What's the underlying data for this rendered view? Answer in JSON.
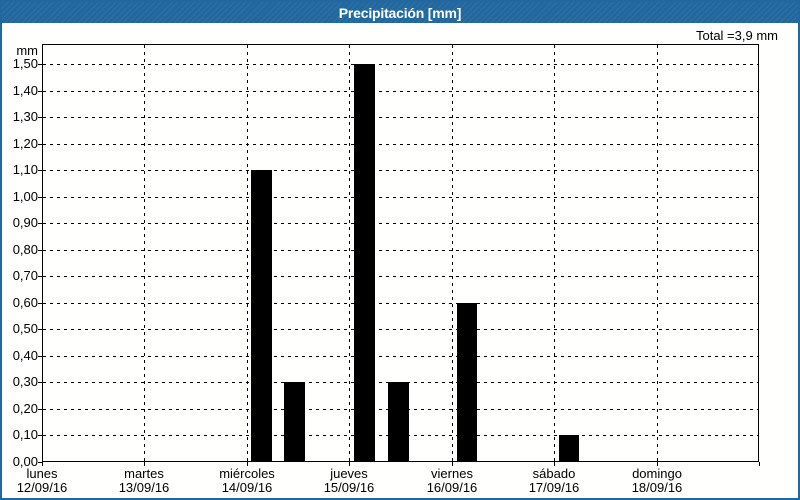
{
  "window": {
    "title": "Precipitación [mm]",
    "total_label": "Total =3,9 mm"
  },
  "colors": {
    "titlebar": "#20689e",
    "window_border": "#20689e",
    "title_text": "#ffffff",
    "bar": "#000000",
    "grid": "#000000",
    "text": "#000000",
    "background": "#fffffe"
  },
  "chart_data": {
    "type": "bar",
    "title": "Precipitación [mm]",
    "ylabel_unit": "mm",
    "total": 3.9,
    "total_text": "Total =3,9 mm",
    "ylim": [
      0,
      1.575
    ],
    "ytick_step": 0.1,
    "grid": "dashed",
    "legend": "none",
    "yticks": [
      {
        "value": 0.0,
        "label": "0,00"
      },
      {
        "value": 0.1,
        "label": "0,10"
      },
      {
        "value": 0.2,
        "label": "0,20"
      },
      {
        "value": 0.3,
        "label": "0,30"
      },
      {
        "value": 0.4,
        "label": "0,40"
      },
      {
        "value": 0.5,
        "label": "0,50"
      },
      {
        "value": 0.6,
        "label": "0,60"
      },
      {
        "value": 0.7,
        "label": "0,70"
      },
      {
        "value": 0.8,
        "label": "0,80"
      },
      {
        "value": 0.9,
        "label": "0,90"
      },
      {
        "value": 1.0,
        "label": "1,00"
      },
      {
        "value": 1.1,
        "label": "1,10"
      },
      {
        "value": 1.2,
        "label": "1,20"
      },
      {
        "value": 1.3,
        "label": "1,30"
      },
      {
        "value": 1.4,
        "label": "1,40"
      },
      {
        "value": 1.5,
        "label": "1,50"
      }
    ],
    "days": [
      {
        "name": "lunes",
        "date": "12/09/16"
      },
      {
        "name": "martes",
        "date": "13/09/16"
      },
      {
        "name": "miércoles",
        "date": "14/09/16"
      },
      {
        "name": "jueves",
        "date": "15/09/16"
      },
      {
        "name": "viernes",
        "date": "16/09/16"
      },
      {
        "name": "sábado",
        "date": "17/09/16"
      },
      {
        "name": "domingo",
        "date": "18/09/16"
      }
    ],
    "bars": [
      {
        "day": "miércoles",
        "date": "14/09/16",
        "value": 1.1,
        "start_day": 2.04,
        "width_day": 0.205
      },
      {
        "day": "miércoles",
        "date": "14/09/16",
        "value": 0.3,
        "start_day": 2.36,
        "width_day": 0.205
      },
      {
        "day": "jueves",
        "date": "15/09/16",
        "value": 1.5,
        "start_day": 3.05,
        "width_day": 0.205
      },
      {
        "day": "jueves",
        "date": "15/09/16",
        "value": 0.3,
        "start_day": 3.38,
        "width_day": 0.205
      },
      {
        "day": "viernes",
        "date": "16/09/16",
        "value": 0.6,
        "start_day": 4.05,
        "width_day": 0.2
      },
      {
        "day": "sábado",
        "date": "17/09/16",
        "value": 0.1,
        "start_day": 5.05,
        "width_day": 0.2
      }
    ]
  }
}
